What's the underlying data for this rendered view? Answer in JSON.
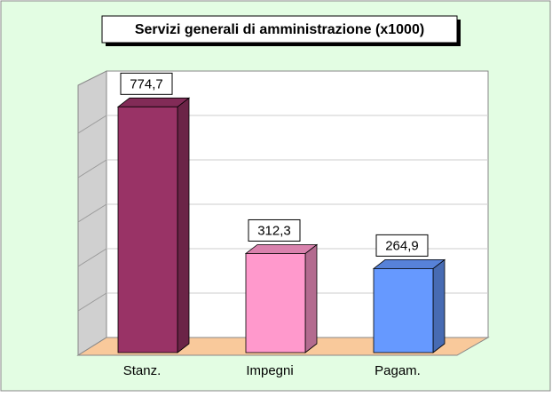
{
  "chart_data": {
    "type": "bar3d",
    "title": "Servizi generali di amministrazione (x1000)",
    "categories": [
      "Stanz.",
      "Impegni",
      "Pagam."
    ],
    "values": [
      774.7,
      312.3,
      264.9
    ],
    "value_labels": [
      "774,7",
      "312,3",
      "264,9"
    ],
    "colors": [
      "#993366",
      "#ff99cc",
      "#6699ff"
    ],
    "ylim": [
      0,
      840
    ],
    "yticks": [
      0,
      140,
      280,
      420,
      560,
      700,
      840
    ],
    "grid": true
  }
}
